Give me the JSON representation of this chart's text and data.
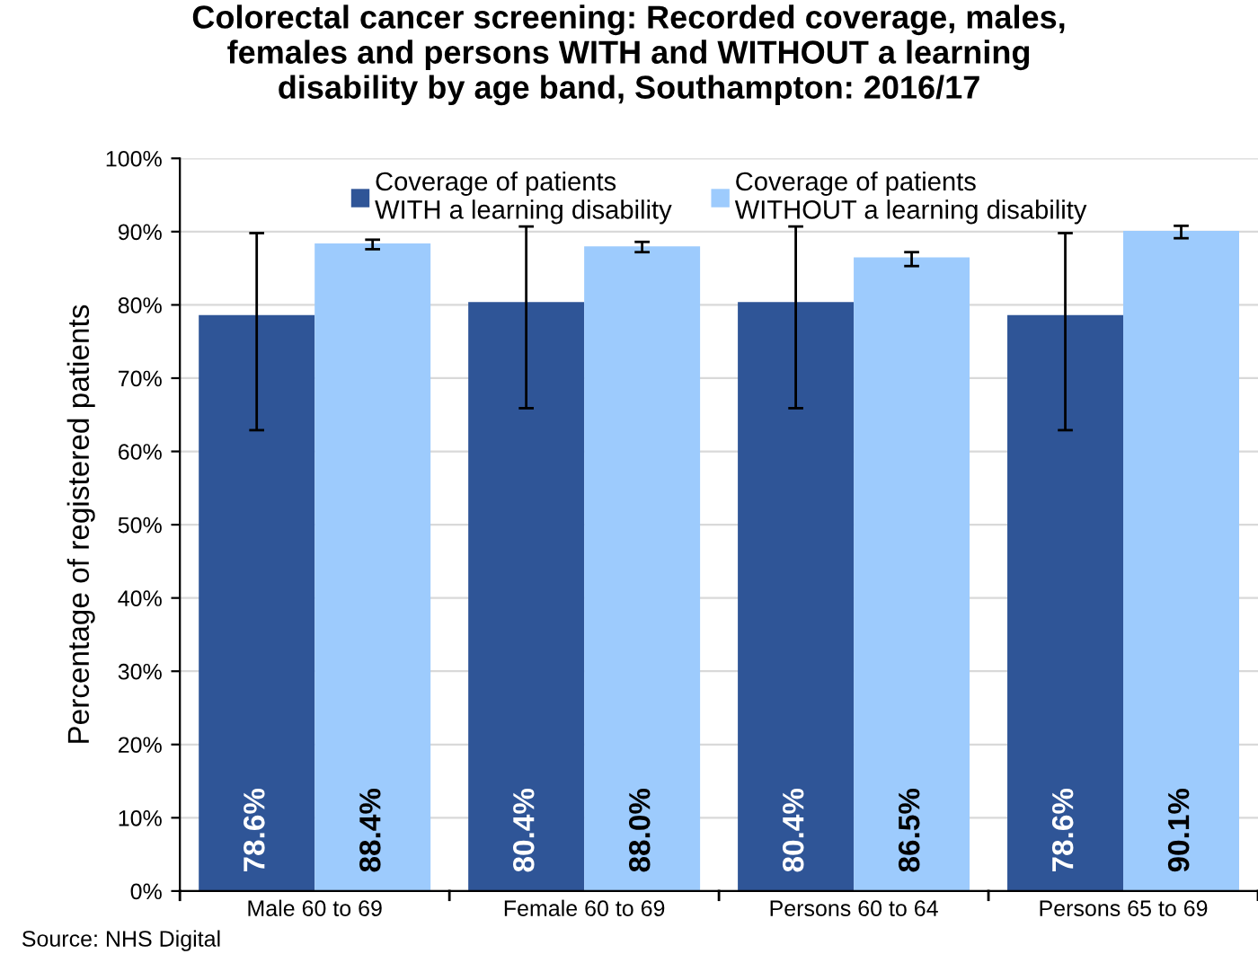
{
  "chart_data": {
    "type": "bar",
    "title": "Colorectal cancer screening: Recorded coverage, males,\nfemales and persons WITH and WITHOUT a learning\ndisability by age band, Southampton: 2016/17",
    "ylabel": "Percentage of registered patients",
    "categories": [
      "Male 60 to 69",
      "Female 60 to 69",
      "Persons 60 to 64",
      "Persons 65 to 69"
    ],
    "series": [
      {
        "name": "Coverage of patients\nWITH a learning disability",
        "color": "#2f5597",
        "values": [
          78.6,
          80.4,
          80.4,
          78.6
        ],
        "errors": [
          [
            62.9,
            89.8
          ],
          [
            65.9,
            90.7
          ],
          [
            65.9,
            90.7
          ],
          [
            62.9,
            89.8
          ]
        ],
        "value_labels": [
          "78.6%",
          "80.4%",
          "80.4%",
          "78.6%"
        ]
      },
      {
        "name": "Coverage of patients\nWITHOUT a learning disability",
        "color": "#9dcbfd",
        "values": [
          88.4,
          88.0,
          86.5,
          90.1
        ],
        "errors": [
          [
            87.6,
            88.9
          ],
          [
            87.2,
            88.6
          ],
          [
            85.3,
            87.2
          ],
          [
            89.1,
            90.8
          ]
        ],
        "value_labels": [
          "88.4%",
          "88.0%",
          "86.5%",
          "90.1%"
        ]
      }
    ],
    "ylim": [
      0,
      100
    ],
    "yticks": [
      {
        "value": 0,
        "label": "0%"
      },
      {
        "value": 10,
        "label": "10%"
      },
      {
        "value": 20,
        "label": "20%"
      },
      {
        "value": 30,
        "label": "30%"
      },
      {
        "value": 40,
        "label": "40%"
      },
      {
        "value": 50,
        "label": "50%"
      },
      {
        "value": 60,
        "label": "60%"
      },
      {
        "value": 70,
        "label": "70%"
      },
      {
        "value": 80,
        "label": "80%"
      },
      {
        "value": 90,
        "label": "90%"
      },
      {
        "value": 100,
        "label": "100%"
      }
    ],
    "grid": "y",
    "legend": "top",
    "annotations": [
      "Source: NHS Digital"
    ]
  }
}
